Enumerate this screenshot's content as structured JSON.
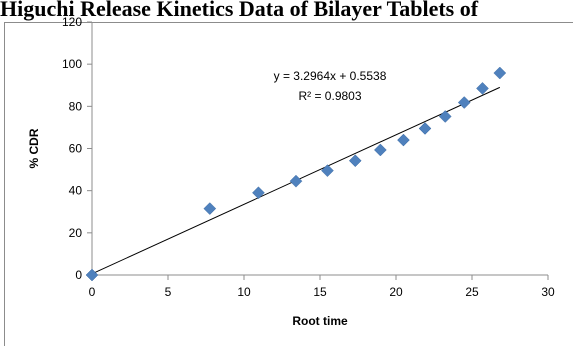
{
  "page_title": "Higuchi Release Kinetics Data of Bilayer Tablets of",
  "chart_data": {
    "type": "scatter",
    "title": "",
    "xlabel": "Root time",
    "ylabel": "% CDR",
    "xlim": [
      0,
      30
    ],
    "ylim": [
      0,
      120
    ],
    "x_ticks": [
      0,
      5,
      10,
      15,
      20,
      25,
      30
    ],
    "y_ticks": [
      0,
      20,
      40,
      60,
      80,
      100,
      120
    ],
    "grid": false,
    "marker_color": "#4f81bd",
    "trendline_color": "#000000",
    "series": [
      {
        "x": [
          0,
          7.75,
          10.95,
          13.42,
          15.49,
          17.32,
          18.97,
          20.49,
          21.91,
          23.24,
          24.49,
          25.69,
          26.83
        ],
        "y": [
          0,
          31.5,
          39,
          44.5,
          49.5,
          54.2,
          59.3,
          64,
          69.5,
          75.2,
          81.8,
          88.5,
          95.8
        ]
      }
    ],
    "trendline": {
      "slope": 3.2964,
      "intercept": 0.5538,
      "x_range": [
        0,
        26.83
      ],
      "equation_label": "y = 3.2964x + 0.5538",
      "r2_label": "R² = 0.9803"
    }
  }
}
